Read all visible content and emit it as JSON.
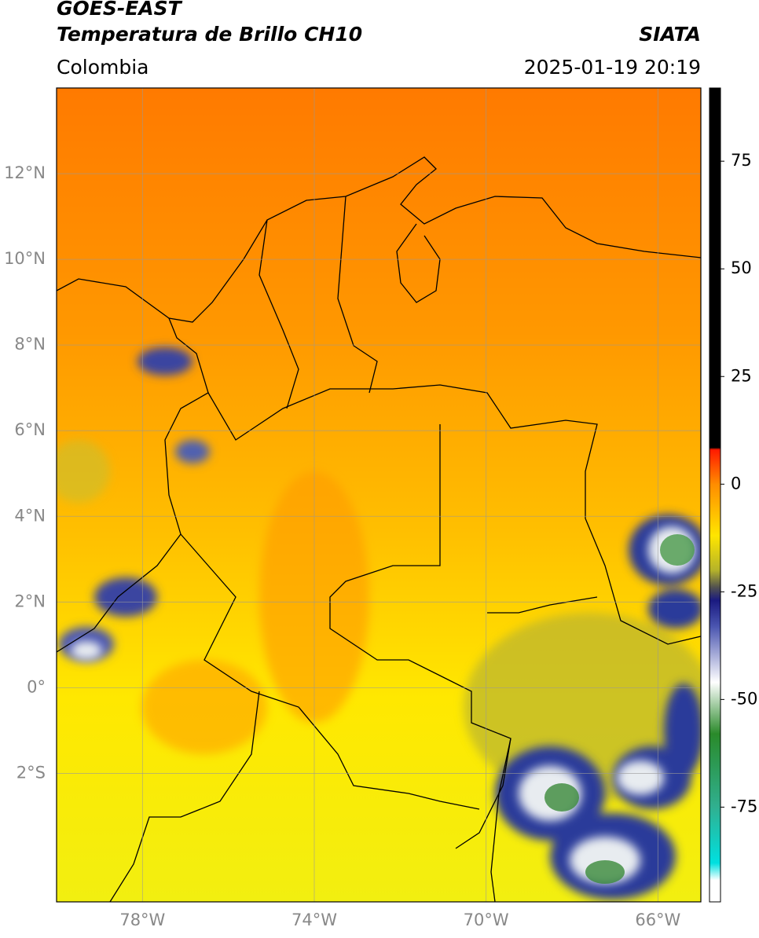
{
  "header": {
    "title": "GOES-EAST",
    "subtitle": "Temperatura de Brillo CH10",
    "region": "Colombia",
    "source": "SIATA",
    "datetime": "2025-01-19 20:19"
  },
  "map": {
    "xlim": [
      -80,
      -65
    ],
    "ylim": [
      -5,
      14
    ],
    "xticks": [
      {
        "value": -78,
        "label": "78°W"
      },
      {
        "value": -74,
        "label": "74°W"
      },
      {
        "value": -70,
        "label": "70°W"
      },
      {
        "value": -66,
        "label": "66°W"
      }
    ],
    "yticks": [
      {
        "value": 12,
        "label": "12°N"
      },
      {
        "value": 10,
        "label": "10°N"
      },
      {
        "value": 8,
        "label": "8°N"
      },
      {
        "value": 6,
        "label": "6°N"
      },
      {
        "value": 4,
        "label": "4°N"
      },
      {
        "value": 2,
        "label": "2°N"
      },
      {
        "value": 0,
        "label": "0°"
      },
      {
        "value": -2,
        "label": "2°S"
      }
    ],
    "grid": true
  },
  "colorbar": {
    "clim": [
      -97,
      92
    ],
    "ticks": [
      75,
      50,
      25,
      0,
      -25,
      -50,
      -75
    ],
    "stops": [
      {
        "value": 92,
        "color": "#000000"
      },
      {
        "value": 8.5,
        "color": "#000000"
      },
      {
        "value": 8,
        "color": "#ff1a00"
      },
      {
        "value": 0,
        "color": "#ff8c00"
      },
      {
        "value": -12,
        "color": "#ffe600"
      },
      {
        "value": -20,
        "color": "#b5b32a"
      },
      {
        "value": -24,
        "color": "#505050"
      },
      {
        "value": -27,
        "color": "#1a1a80"
      },
      {
        "value": -33,
        "color": "#4a55b0"
      },
      {
        "value": -46,
        "color": "#ffffff"
      },
      {
        "value": -58,
        "color": "#2a8a2a"
      },
      {
        "value": -75,
        "color": "#30b090"
      },
      {
        "value": -88,
        "color": "#00e0e0"
      },
      {
        "value": -92,
        "color": "#ffffff"
      },
      {
        "value": -97,
        "color": "#ffffff"
      }
    ]
  }
}
